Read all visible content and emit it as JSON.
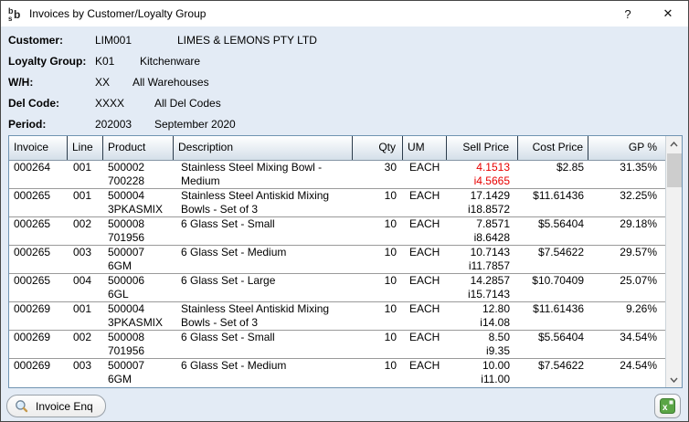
{
  "window": {
    "title": "Invoices by Customer/Loyalty Group",
    "help_label": "?",
    "close_label": "✕",
    "app_icon": "bsb-logo-icon"
  },
  "info": {
    "rows": [
      {
        "label": "Customer:",
        "code": "LIM001",
        "name": "LIMES & LEMONS PTY LTD"
      },
      {
        "label": "Loyalty Group:",
        "code": "K01",
        "name": "Kitchenware"
      },
      {
        "label": "W/H:",
        "code": "XX",
        "name": "All Warehouses"
      },
      {
        "label": "Del Code:",
        "code": "XXXX",
        "name": "All Del Codes"
      },
      {
        "label": "Period:",
        "code": "202003",
        "name": "September 2020"
      }
    ]
  },
  "table": {
    "columns": [
      {
        "key": "invoice",
        "label": "Invoice"
      },
      {
        "key": "line",
        "label": "Line"
      },
      {
        "key": "product",
        "label": "Product"
      },
      {
        "key": "desc",
        "label": "Description"
      },
      {
        "key": "qty",
        "label": "Qty"
      },
      {
        "key": "um",
        "label": "UM"
      },
      {
        "key": "sell",
        "label": "Sell Price"
      },
      {
        "key": "cost",
        "label": "Cost Price"
      },
      {
        "key": "gp",
        "label": "GP %"
      }
    ],
    "rows": [
      {
        "invoice": "000264",
        "line": "001",
        "product": "500002",
        "product_alt": "700228",
        "description": "Stainless Steel Mixing Bowl -\nMedium",
        "qty": "30",
        "um": "EACH",
        "sell_price": "4.1513",
        "sell_price_inc": "i4.5665",
        "cost_price": "$2.85",
        "gp_pct": "31.35%",
        "sell_price_red": true
      },
      {
        "invoice": "000265",
        "line": "001",
        "product": "500004",
        "product_alt": "3PKASMIX",
        "description": "Stainless Steel Antiskid Mixing\nBowls - Set of 3",
        "qty": "10",
        "um": "EACH",
        "sell_price": "17.1429",
        "sell_price_inc": "i18.8572",
        "cost_price": "$11.61436",
        "gp_pct": "32.25%",
        "sell_price_red": false
      },
      {
        "invoice": "000265",
        "line": "002",
        "product": "500008",
        "product_alt": "701956",
        "description": "6 Glass Set - Small",
        "qty": "10",
        "um": "EACH",
        "sell_price": "7.8571",
        "sell_price_inc": "i8.6428",
        "cost_price": "$5.56404",
        "gp_pct": "29.18%",
        "sell_price_red": false
      },
      {
        "invoice": "000265",
        "line": "003",
        "product": "500007",
        "product_alt": "6GM",
        "description": "6 Glass Set - Medium",
        "qty": "10",
        "um": "EACH",
        "sell_price": "10.7143",
        "sell_price_inc": "i11.7857",
        "cost_price": "$7.54622",
        "gp_pct": "29.57%",
        "sell_price_red": false
      },
      {
        "invoice": "000265",
        "line": "004",
        "product": "500006",
        "product_alt": "6GL",
        "description": "6 Glass Set - Large",
        "qty": "10",
        "um": "EACH",
        "sell_price": "14.2857",
        "sell_price_inc": "i15.7143",
        "cost_price": "$10.70409",
        "gp_pct": "25.07%",
        "sell_price_red": false
      },
      {
        "invoice": "000269",
        "line": "001",
        "product": "500004",
        "product_alt": "3PKASMIX",
        "description": "Stainless Steel Antiskid Mixing\nBowls - Set of 3",
        "qty": "10",
        "um": "EACH",
        "sell_price": "12.80",
        "sell_price_inc": "i14.08",
        "cost_price": "$11.61436",
        "gp_pct": "9.26%",
        "sell_price_red": false
      },
      {
        "invoice": "000269",
        "line": "002",
        "product": "500008",
        "product_alt": "701956",
        "description": "6 Glass Set - Small",
        "qty": "10",
        "um": "EACH",
        "sell_price": "8.50",
        "sell_price_inc": "i9.35",
        "cost_price": "$5.56404",
        "gp_pct": "34.54%",
        "sell_price_red": false
      },
      {
        "invoice": "000269",
        "line": "003",
        "product": "500007",
        "product_alt": "6GM",
        "description": "6 Glass Set - Medium",
        "qty": "10",
        "um": "EACH",
        "sell_price": "10.00",
        "sell_price_inc": "i11.00",
        "cost_price": "$7.54622",
        "gp_pct": "24.54%",
        "sell_price_red": false
      }
    ]
  },
  "footer": {
    "invoice_enq_label": "Invoice Enq",
    "export_icon": "excel-export-icon"
  },
  "colors": {
    "content_bg": "#e3ebf5",
    "titlebar_bg": "#ffffff",
    "grid_border": "#7094b2",
    "header_gradient_top": "#ffffff",
    "header_gradient_bottom": "#d4dfe9",
    "row_separator": "#9a9a9a",
    "negative_price": "#e80000",
    "excel_green": "#5aa545",
    "scroll_track": "#f1f1f1",
    "scroll_thumb": "#cdcdcd"
  }
}
